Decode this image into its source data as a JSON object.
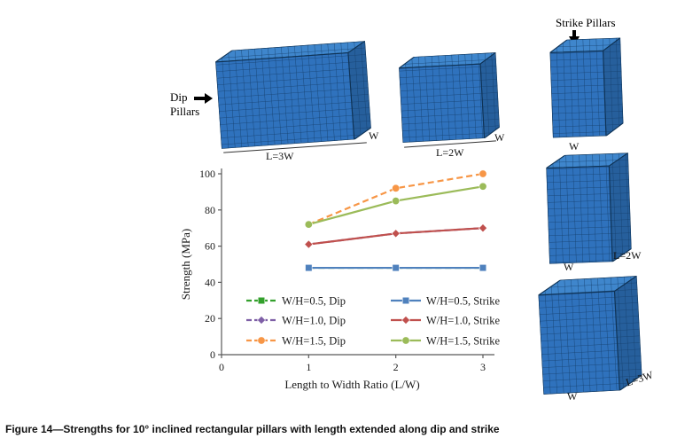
{
  "figure": {
    "caption": "Figure 14—Strengths for 10° inclined rectangular pillars with length extended along dip and strike"
  },
  "annotations": {
    "dip_line1": "Dip",
    "dip_line2": "Pillars",
    "strike_label": "Strike Pillars"
  },
  "pillar_labels": {
    "dip3": {
      "bottom": "L=3W",
      "side": "W"
    },
    "dip2": {
      "bottom": "L=2W",
      "side": "W"
    },
    "strike1": {
      "bottom": "W"
    },
    "strike2": {
      "bottom": "W",
      "side": "L=2W"
    },
    "strike3": {
      "bottom": "W",
      "side": "L=3W"
    }
  },
  "chart_data": {
    "type": "line",
    "x": [
      1,
      2,
      3
    ],
    "series": [
      {
        "name": "W/H=0.5, Dip",
        "values": [
          48,
          48,
          48
        ],
        "color": "#33A02C",
        "dash": true,
        "marker": "square"
      },
      {
        "name": "W/H=1.0, Dip",
        "values": [
          61,
          67,
          70
        ],
        "color": "#7E5FA6",
        "dash": true,
        "marker": "diamond"
      },
      {
        "name": "W/H=1.5, Dip",
        "values": [
          72,
          92,
          100
        ],
        "color": "#F79646",
        "dash": true,
        "marker": "circle"
      },
      {
        "name": "W/H=0.5, Strike",
        "values": [
          48,
          48,
          48
        ],
        "color": "#4F81BD",
        "dash": false,
        "marker": "square"
      },
      {
        "name": "W/H=1.0, Strike",
        "values": [
          61,
          67,
          70
        ],
        "color": "#C0504D",
        "dash": false,
        "marker": "diamond"
      },
      {
        "name": "W/H=1.5, Strike",
        "values": [
          72,
          85,
          93
        ],
        "color": "#9BBB59",
        "dash": false,
        "marker": "circle"
      }
    ],
    "xlabel": "Length to Width Ratio (L/W)",
    "ylabel": "Strength (MPa)",
    "xlim": [
      0,
      3
    ],
    "ylim": [
      0,
      100
    ],
    "xticks": [
      0,
      1,
      2,
      3
    ],
    "yticks": [
      0,
      20,
      40,
      60,
      80,
      100
    ],
    "grid": false,
    "legend_position": "inside-bottom"
  }
}
